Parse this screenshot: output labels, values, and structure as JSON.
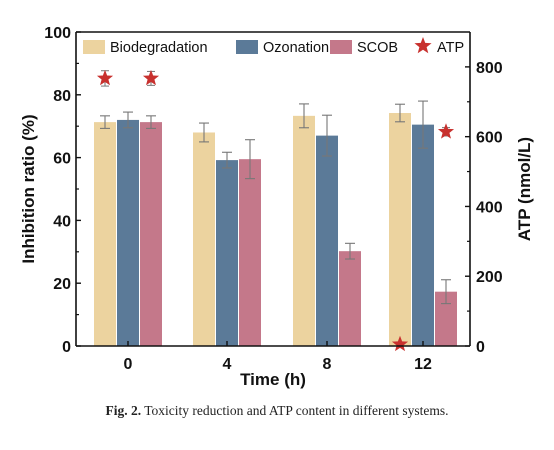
{
  "caption": {
    "label": "Fig. 2.",
    "text": "Toxicity reduction and ATP content in different systems."
  },
  "chart_data": {
    "type": "bar",
    "xlabel": "Time (h)",
    "ylabel": "Inhibition ratio (%)",
    "y2label": "ATP (nmol/L)",
    "categories": [
      "0",
      "4",
      "8",
      "12"
    ],
    "ylim": [
      0,
      100
    ],
    "yticks": [
      0,
      20,
      40,
      60,
      80,
      100
    ],
    "y2lim": [
      0,
      900
    ],
    "y2ticks": [
      0,
      200,
      400,
      600,
      800
    ],
    "grid": false,
    "legend_position": "top",
    "series": [
      {
        "name": "Biodegradation",
        "color": "#ecd39f",
        "values": [
          71.3,
          68.0,
          73.3,
          74.2
        ],
        "errors": [
          2.0,
          3.0,
          3.8,
          2.8
        ]
      },
      {
        "name": "Ozonation",
        "color": "#5b7a98",
        "values": [
          72.0,
          59.2,
          67.0,
          70.5
        ],
        "errors": [
          2.5,
          2.5,
          6.5,
          7.5
        ]
      },
      {
        "name": "SCOB",
        "color": "#c4788a",
        "values": [
          71.3,
          59.5,
          30.2,
          17.3
        ],
        "errors": [
          2.0,
          6.2,
          2.5,
          3.8
        ]
      }
    ],
    "atp": {
      "name": "ATP",
      "color": "#c8312e",
      "points": [
        {
          "x": "0",
          "group": "Biodegradation",
          "value": 767,
          "error": 22
        },
        {
          "x": "0",
          "group": "SCOB",
          "value": 767,
          "error": 20
        },
        {
          "x": "12",
          "group": "Biodegradation",
          "value": 5,
          "error": 0
        },
        {
          "x": "12",
          "group": "SCOB",
          "value": 614,
          "error": 12
        }
      ]
    }
  }
}
